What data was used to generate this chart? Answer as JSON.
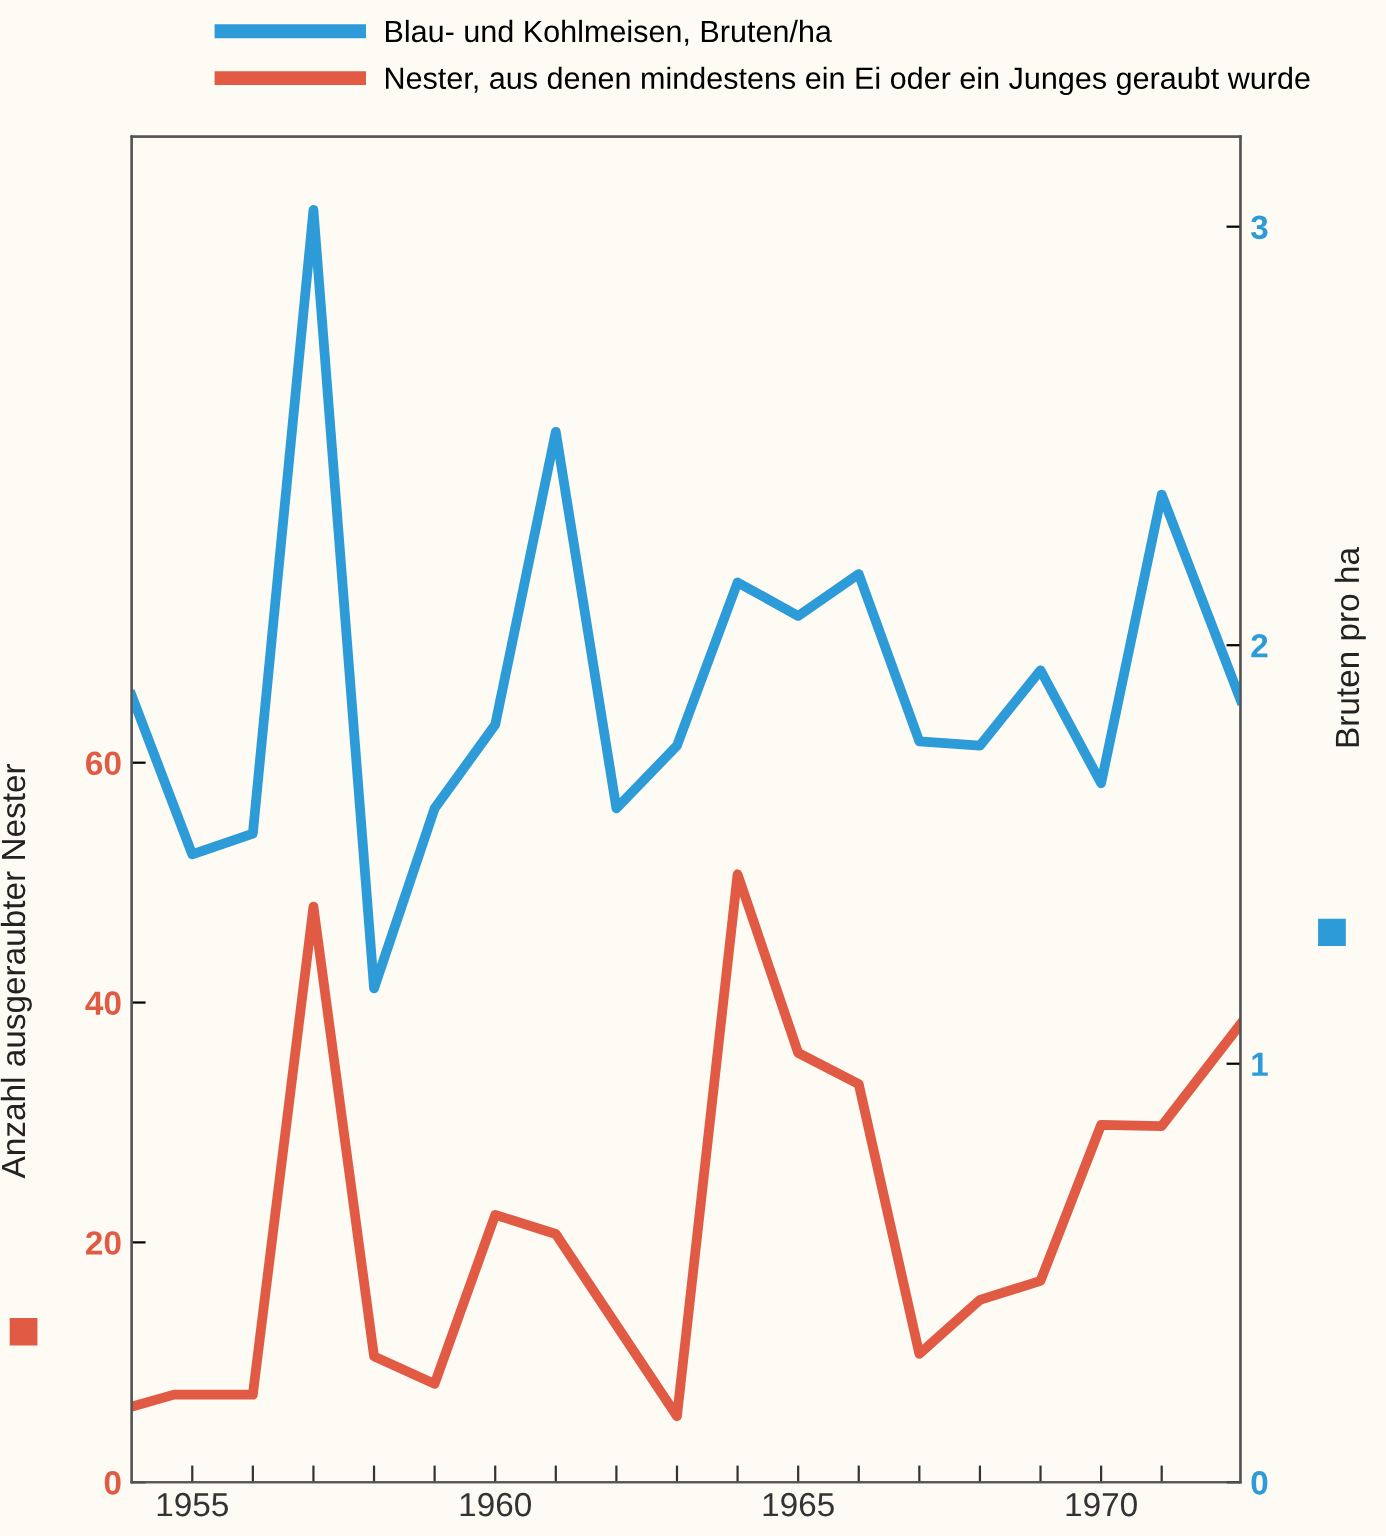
{
  "chart_data": {
    "type": "line",
    "xlabel": null,
    "ylabel": "Anzahl ausgeraubter Nester",
    "y2label": "Bruten pro ha",
    "series": [
      {
        "name": "Blau- und Kohlmeisen, Bruten/ha",
        "color": "#2d9bd8",
        "axis": "y2",
        "x": [
          1954,
          1955,
          1956,
          1957,
          1958,
          1959,
          1960,
          1961,
          1962,
          1963,
          1964,
          1965,
          1966,
          1967,
          1968,
          1969,
          1970,
          1971,
          1972.3
        ],
        "values": [
          1.88,
          1.5,
          1.55,
          3.04,
          1.18,
          1.61,
          1.81,
          2.51,
          1.61,
          1.76,
          2.15,
          2.07,
          2.17,
          1.77,
          1.76,
          1.94,
          1.67,
          2.36,
          1.87
        ]
      },
      {
        "name": "Nester, aus denen mindestens ein Ei oder ein Junges geraubt wurde",
        "color": "#e05a44",
        "axis": "y",
        "x": [
          1954,
          1954.7,
          1956,
          1957,
          1958,
          1959,
          1960,
          1961,
          1963,
          1964,
          1965,
          1966,
          1967,
          1968,
          1969,
          1970,
          1971,
          1972.3
        ],
        "values": [
          6.3,
          7.3,
          7.3,
          48,
          10.5,
          8.2,
          22.3,
          20.7,
          5.5,
          50.7,
          35.8,
          33.2,
          10.7,
          15.2,
          16.8,
          29.8,
          29.7,
          38.2
        ]
      }
    ],
    "xlim": [
      1954,
      1972.3
    ],
    "xticks": [
      {
        "value": 1955,
        "label": "1955"
      },
      {
        "value": 1956,
        "label": null
      },
      {
        "value": 1957,
        "label": null
      },
      {
        "value": 1958,
        "label": null
      },
      {
        "value": 1959,
        "label": null
      },
      {
        "value": 1960,
        "label": "1960"
      },
      {
        "value": 1961,
        "label": null
      },
      {
        "value": 1962,
        "label": null
      },
      {
        "value": 1963,
        "label": null
      },
      {
        "value": 1964,
        "label": null
      },
      {
        "value": 1965,
        "label": "1965"
      },
      {
        "value": 1966,
        "label": null
      },
      {
        "value": 1967,
        "label": null
      },
      {
        "value": 1968,
        "label": null
      },
      {
        "value": 1969,
        "label": null
      },
      {
        "value": 1970,
        "label": "1970"
      },
      {
        "value": 1971,
        "label": null
      }
    ],
    "ylim": [
      0,
      112.2
    ],
    "yticks": [
      0,
      20,
      40,
      60
    ],
    "y2lim": [
      0,
      3.215
    ],
    "y2ticks": [
      0,
      1,
      2,
      3
    ],
    "grid": false,
    "legend": "top",
    "line_style": "solid",
    "marker": "none"
  }
}
